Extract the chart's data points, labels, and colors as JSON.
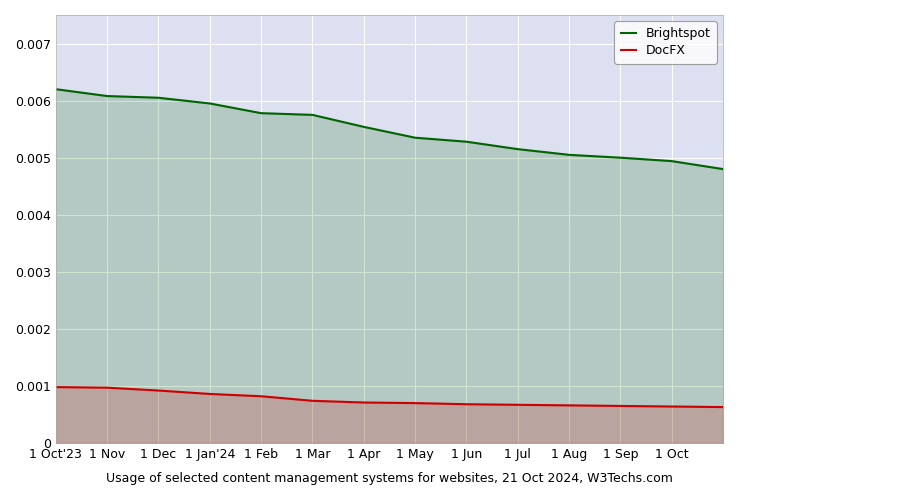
{
  "title": "Usage of selected content management systems for websites, 21 Oct 2024, W3Techs.com",
  "brightspot": {
    "label": "Brightspot",
    "color": "#006400",
    "values": [
      0.0062,
      0.00608,
      0.00605,
      0.00595,
      0.00578,
      0.00575,
      0.00554,
      0.00535,
      0.00528,
      0.00515,
      0.00505,
      0.005,
      0.00494,
      0.0048
    ]
  },
  "docfx": {
    "label": "DocFX",
    "color": "#cc0000",
    "values": [
      0.00098,
      0.00097,
      0.00092,
      0.00086,
      0.00082,
      0.00074,
      0.00071,
      0.0007,
      0.00068,
      0.00067,
      0.00066,
      0.00065,
      0.00064,
      0.00063
    ]
  },
  "x_labels": [
    "1 Oct'23",
    "1 Nov",
    "1 Dec",
    "1 Jan'24",
    "1 Feb",
    "1 Mar",
    "1 Apr",
    "1 May",
    "1 Jun",
    "1 Jul",
    "1 Aug",
    "1 Sep",
    "1 Oct",
    ""
  ],
  "ylim": [
    0,
    0.0075
  ],
  "yticks": [
    0,
    0.001,
    0.002,
    0.003,
    0.004,
    0.005,
    0.006,
    0.007
  ],
  "background_color": "#dde0f0",
  "plot_bg_color": "#dde0f0",
  "grid_color": "#ffffff",
  "legend_border_color": "#888888",
  "fill_alpha": 0.3
}
